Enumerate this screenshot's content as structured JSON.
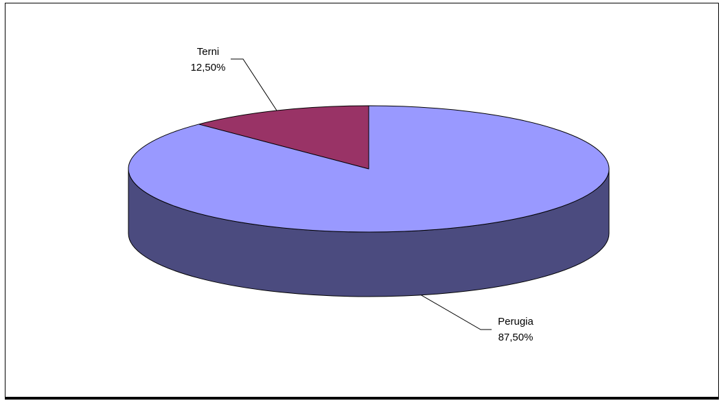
{
  "chart_data": {
    "type": "pie",
    "title": "",
    "three_d": true,
    "categories": [
      "Terni",
      "Perugia"
    ],
    "values": [
      12.5,
      87.5
    ],
    "data_labels": [
      "12,50%",
      "87,50%"
    ],
    "colors": {
      "Terni": "#993366",
      "Perugia": "#9999FF",
      "Perugia_side": "#4B4B7F",
      "Terni_side": "#4C1933",
      "outline": "#000000",
      "background": "#FFFFFF"
    },
    "legend": "none",
    "grid": false
  }
}
